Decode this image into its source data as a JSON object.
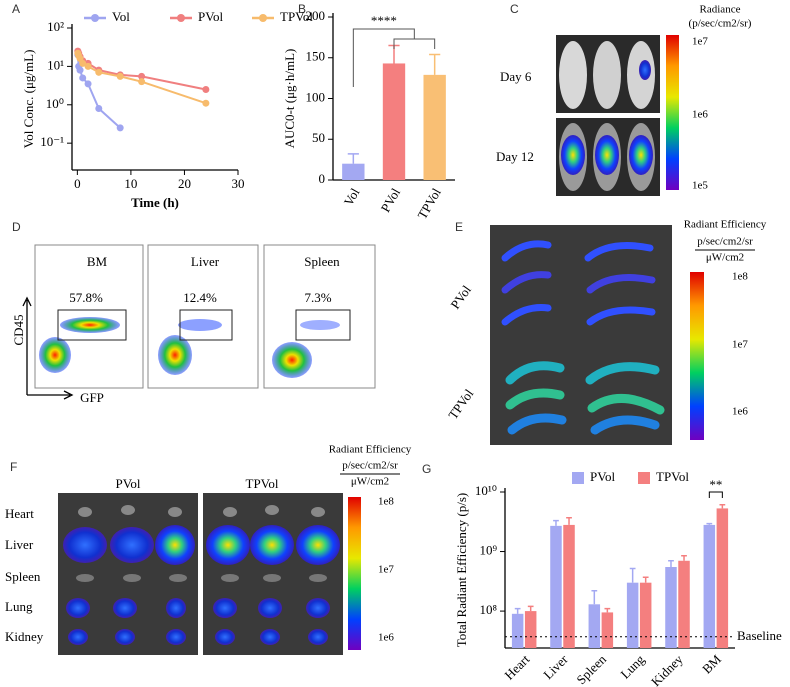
{
  "panel_labels": [
    "A",
    "B",
    "C",
    "D",
    "E",
    "F",
    "G"
  ],
  "chart_data": [
    {
      "type": "line",
      "xlabel": "Time (h)",
      "ylabel": "Vol Conc. (μg/mL)",
      "log_y": true,
      "x": [
        0.083,
        0.25,
        0.5,
        1,
        2,
        4,
        8,
        12,
        24
      ],
      "series": [
        {
          "name": "Vol",
          "color": "#9fa5f0",
          "values": [
            20,
            10,
            8,
            5,
            3.5,
            0.8,
            0.25,
            null,
            null
          ]
        },
        {
          "name": "PVol",
          "color": "#f07f7f",
          "values": [
            25,
            22,
            18,
            14,
            12,
            8,
            6,
            5.5,
            2.5
          ]
        },
        {
          "name": "TPVol",
          "color": "#f7bb6c",
          "values": [
            22,
            19,
            16,
            12,
            10,
            7,
            5.5,
            4,
            1.1
          ]
        }
      ],
      "xlim": [
        -1,
        30
      ],
      "xticks": [
        0,
        10,
        20,
        30
      ],
      "ylim": [
        0.02,
        100
      ],
      "yticks": [
        {
          "value": 0.1,
          "label": "10⁻¹"
        },
        {
          "value": 1,
          "label": "10⁰"
        },
        {
          "value": 10,
          "label": "10¹"
        },
        {
          "value": 100,
          "label": "10²"
        }
      ]
    },
    {
      "type": "bar",
      "ylabel": "AUC0-t (μg·h/mL)",
      "categories": [
        "Vol",
        "PVol",
        "TPVol"
      ],
      "values": [
        20,
        143,
        129
      ],
      "errors": [
        12,
        22,
        25
      ],
      "colors": [
        "#a3a8f2",
        "#f47f7f",
        "#f9bf74"
      ],
      "ylim": [
        0,
        200
      ],
      "yticks": [
        0,
        50,
        100,
        150,
        200
      ],
      "annotation": "****"
    },
    {
      "type": "bar",
      "ylabel": "Total Radiant Efficiency (p/s)",
      "log_y": true,
      "categories": [
        "Heart",
        "Liver",
        "Spleen",
        "Lung",
        "Kidney",
        "BM"
      ],
      "series": [
        {
          "name": "PVol",
          "color": "#a3a8f2",
          "values": [
            90000000,
            2700000000,
            130000000,
            300000000,
            550000000,
            2800000000
          ],
          "errors": [
            20000000,
            600000000,
            90000000,
            220000000,
            150000000,
            150000000
          ]
        },
        {
          "name": "TPVol",
          "color": "#f47f7f",
          "values": [
            100000000,
            2800000000,
            95000000,
            300000000,
            700000000,
            5300000000
          ],
          "errors": [
            20000000,
            900000000,
            15000000,
            70000000,
            150000000,
            800000000
          ]
        }
      ],
      "ylim": [
        24000000,
        10000000000
      ],
      "yticks": [
        {
          "value": 100000000,
          "label": "10⁸"
        },
        {
          "value": 1000000000,
          "label": "10⁹"
        },
        {
          "value": 10000000000,
          "label": "10¹⁰"
        }
      ],
      "baseline": {
        "value": 37000000,
        "label": "Baseline"
      },
      "annotation": "**"
    }
  ],
  "imaging": {
    "C": {
      "title": "Radiance",
      "unit": "(p/sec/cm2/sr)",
      "rows": [
        "Day 6",
        "Day 12"
      ],
      "colorbar": [
        "1e7",
        "1e6",
        "1e5"
      ]
    },
    "D": {
      "gates": [
        {
          "tissue": "BM",
          "percent": "57.8%"
        },
        {
          "tissue": "Liver",
          "percent": "12.4%"
        },
        {
          "tissue": "Spleen",
          "percent": "7.3%"
        }
      ],
      "y_marker": "CD45",
      "x_marker": "GFP"
    },
    "E": {
      "title": "Radiant Efficiency",
      "unit_top": "p/sec/cm2/sr",
      "unit_bottom": "μW/cm2",
      "groups": [
        "PVol",
        "TPVol"
      ],
      "colorbar": [
        "1e8",
        "1e7",
        "1e6"
      ]
    },
    "F": {
      "title": "Radiant Efficiency",
      "unit_top": "p/sec/cm2/sr",
      "unit_bottom": "μW/cm2",
      "groups": [
        "PVol",
        "TPVol"
      ],
      "organs": [
        "Heart",
        "Liver",
        "Spleen",
        "Lung",
        "Kidney"
      ],
      "colorbar": [
        "1e8",
        "1e7",
        "1e6"
      ]
    }
  }
}
